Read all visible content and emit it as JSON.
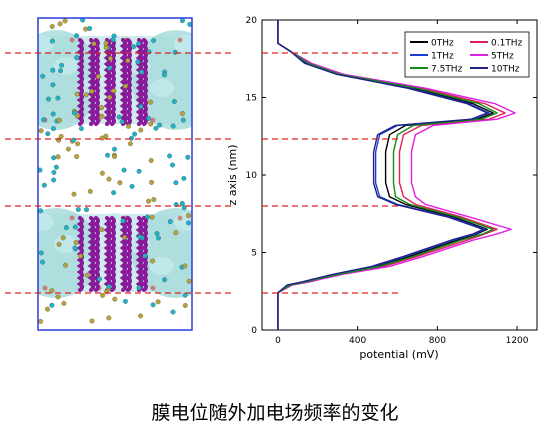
{
  "caption": "膜电位随外加电场频率的变化",
  "colors": {
    "membrane": "#a8dcdc",
    "protein": "#8a1a9a",
    "ion_cyan": "#1fb3c8",
    "ion_gold": "#b8a23a",
    "box": "#2a3fd8",
    "dashed": "#e02020"
  },
  "chart_data": {
    "type": "line",
    "title": "",
    "xlabel": "potential (mV)",
    "ylabel": "z axis (nm)",
    "xlim": [
      -80,
      1300
    ],
    "ylim": [
      0,
      20
    ],
    "xticks": [
      0,
      400,
      800,
      1200
    ],
    "yticks": [
      0,
      5,
      10,
      15,
      20
    ],
    "legend_position": "top-right",
    "series": [
      {
        "name": "0THz",
        "color": "#000000",
        "x": [
          0,
          0,
          60,
          140,
          200,
          300,
          500,
          650,
          900,
          1000,
          1050,
          880,
          640,
          560,
          540,
          540,
          560,
          640,
          1000,
          1080,
          980,
          680,
          300,
          150,
          60,
          0,
          0
        ],
        "y": [
          0,
          2.4,
          2.9,
          3.1,
          3.3,
          3.6,
          4.1,
          4.7,
          5.8,
          6.2,
          6.5,
          7.3,
          8.1,
          8.6,
          9.5,
          11.5,
          12.6,
          13.2,
          13.6,
          14.0,
          14.6,
          15.6,
          16.5,
          17.2,
          18.0,
          18.5,
          20
        ]
      },
      {
        "name": "0.1THz",
        "color": "#e0205a",
        "x": [
          0,
          0,
          70,
          150,
          210,
          320,
          530,
          690,
          950,
          1040,
          1100,
          920,
          690,
          630,
          610,
          610,
          630,
          720,
          1060,
          1140,
          1040,
          720,
          320,
          160,
          60,
          0,
          0
        ],
        "y": [
          0,
          2.4,
          2.9,
          3.1,
          3.3,
          3.6,
          4.1,
          4.7,
          5.8,
          6.2,
          6.5,
          7.3,
          8.1,
          8.6,
          9.5,
          11.5,
          12.6,
          13.2,
          13.6,
          14.0,
          14.6,
          15.6,
          16.5,
          17.2,
          18.0,
          18.5,
          20
        ]
      },
      {
        "name": "1THz",
        "color": "#1a3fd0",
        "x": [
          0,
          0,
          50,
          130,
          190,
          290,
          480,
          630,
          880,
          990,
          1040,
          860,
          600,
          510,
          490,
          490,
          510,
          600,
          980,
          1060,
          960,
          660,
          300,
          140,
          60,
          0,
          0
        ],
        "y": [
          0,
          2.4,
          2.9,
          3.1,
          3.3,
          3.6,
          4.1,
          4.7,
          5.8,
          6.2,
          6.5,
          7.3,
          8.1,
          8.6,
          9.5,
          11.5,
          12.6,
          13.2,
          13.6,
          14.0,
          14.6,
          15.6,
          16.5,
          17.2,
          18.0,
          18.5,
          20
        ]
      },
      {
        "name": "5THz",
        "color": "#e020e0",
        "x": [
          0,
          0,
          70,
          160,
          220,
          330,
          560,
          720,
          980,
          1100,
          1170,
          960,
          740,
          690,
          670,
          670,
          690,
          780,
          1100,
          1190,
          1090,
          740,
          330,
          170,
          60,
          0,
          0
        ],
        "y": [
          0,
          2.4,
          2.9,
          3.1,
          3.3,
          3.6,
          4.1,
          4.7,
          5.8,
          6.2,
          6.5,
          7.3,
          8.1,
          8.6,
          9.5,
          11.5,
          12.6,
          13.2,
          13.6,
          14.0,
          14.6,
          15.6,
          16.5,
          17.2,
          18.0,
          18.5,
          20
        ]
      },
      {
        "name": "7.5THz",
        "color": "#138a13",
        "x": [
          0,
          0,
          60,
          140,
          200,
          310,
          510,
          670,
          920,
          1030,
          1080,
          900,
          660,
          590,
          580,
          580,
          600,
          680,
          1020,
          1100,
          1010,
          700,
          310,
          155,
          60,
          0,
          0
        ],
        "y": [
          0,
          2.4,
          2.9,
          3.1,
          3.3,
          3.6,
          4.1,
          4.7,
          5.8,
          6.2,
          6.5,
          7.3,
          8.1,
          8.6,
          9.5,
          11.5,
          12.6,
          13.2,
          13.6,
          14.0,
          14.6,
          15.6,
          16.5,
          17.2,
          18.0,
          18.5,
          20
        ]
      },
      {
        "name": "10THz",
        "color": "#20208a",
        "x": [
          0,
          0,
          45,
          120,
          180,
          280,
          470,
          620,
          870,
          980,
          1030,
          850,
          590,
          500,
          480,
          480,
          500,
          590,
          970,
          1050,
          950,
          650,
          295,
          135,
          60,
          0,
          0
        ],
        "y": [
          0,
          2.4,
          2.9,
          3.1,
          3.3,
          3.6,
          4.1,
          4.7,
          5.8,
          6.2,
          6.5,
          7.3,
          8.1,
          8.6,
          9.5,
          11.5,
          12.6,
          13.2,
          13.6,
          14.0,
          14.6,
          15.6,
          16.5,
          17.2,
          18.0,
          18.5,
          20
        ]
      }
    ]
  }
}
